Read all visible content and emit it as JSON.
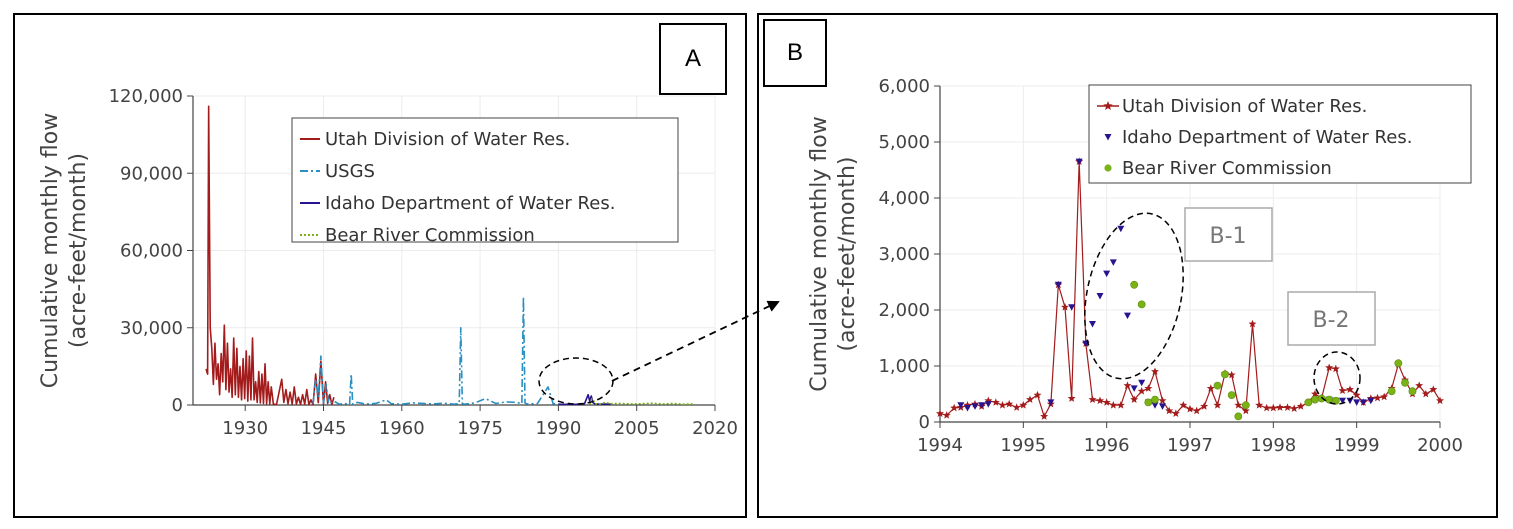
{
  "colors": {
    "utah": "#a31b1b",
    "usgs": "#2a8fc1",
    "idaho": "#29148f",
    "brc": "#7bb317",
    "grid": "#ececec",
    "axis": "#444444"
  },
  "panel_a": {
    "tag": "A"
  },
  "panel_b": {
    "tag": "B"
  },
  "callouts": {
    "b1": "B-1",
    "b2": "B-2"
  },
  "chart_data": [
    {
      "type": "line",
      "ylabel": "Cumulative monthly flow (acre-feet/month)",
      "ylabel_lines": [
        "Cumulative monthly flow",
        "(acre-feet/month)"
      ],
      "xlim": [
        1920,
        2020
      ],
      "ylim": [
        0,
        120000
      ],
      "x_ticks": [
        "1930",
        "1945",
        "1960",
        "1975",
        "1990",
        "2005",
        "2020"
      ],
      "y_ticks": [
        "0",
        "30,000",
        "60,000",
        "90,000",
        "120,000"
      ],
      "grid": true,
      "legend_position": "top-right",
      "series": [
        {
          "name": "Utah Division of Water Res.",
          "style": "solid",
          "color_key": "utah",
          "x": [
            1922.5,
            1922.8,
            1923.0,
            1923.3,
            1923.6,
            1923.9,
            1924.2,
            1924.5,
            1924.8,
            1925.1,
            1925.4,
            1925.7,
            1926.0,
            1926.3,
            1926.6,
            1926.9,
            1927.2,
            1927.5,
            1927.8,
            1928.1,
            1928.4,
            1928.7,
            1929.0,
            1929.3,
            1929.6,
            1929.9,
            1930.2,
            1930.5,
            1930.8,
            1931.1,
            1931.4,
            1931.7,
            1932.0,
            1932.3,
            1932.6,
            1932.9,
            1933.2,
            1933.5,
            1933.8,
            1934.1,
            1934.4,
            1934.7,
            1935.0,
            1935.4,
            1936.0,
            1937.0,
            1937.4,
            1937.8,
            1938.2,
            1938.6,
            1939.0,
            1939.4,
            1939.8,
            1940.2,
            1940.6,
            1941.0,
            1941.4,
            1941.8,
            1942.2,
            1942.6,
            1943.0,
            1943.5,
            1944.0,
            1944.5,
            1945.0,
            1945.4,
            1945.8,
            1946.2,
            1946.6,
            1947.0
          ],
          "values": [
            14000,
            12000,
            116000,
            30000,
            22000,
            8000,
            24000,
            10000,
            16000,
            4000,
            20000,
            9000,
            31000,
            6000,
            24000,
            5000,
            14000,
            3000,
            26000,
            4000,
            22000,
            3000,
            15000,
            2000,
            18000,
            2500,
            21000,
            1500,
            19000,
            2000,
            26000,
            2000,
            9000,
            1000,
            13000,
            800,
            12000,
            600,
            16000,
            500,
            9000,
            400,
            7000,
            300,
            200,
            10000,
            1000,
            6000,
            500,
            5000,
            300,
            7000,
            400,
            3000,
            200,
            4000,
            300,
            6000,
            200,
            2000,
            100,
            12000,
            900,
            17000,
            300,
            9000,
            600,
            4000,
            200,
            3000
          ]
        },
        {
          "name": "USGS",
          "style": "dash-dot",
          "color_key": "usgs",
          "x": [
            1943.0,
            1943.5,
            1944.0,
            1944.5,
            1945.0,
            1945.5,
            1946.0,
            1947.0,
            1948.0,
            1949.0,
            1950.0,
            1950.3,
            1950.6,
            1951.5,
            1953.0,
            1955.0,
            1957.0,
            1958.0,
            1960.0,
            1962.0,
            1964.0,
            1966.0,
            1968.0,
            1970.0,
            1971.0,
            1971.3,
            1971.6,
            1972.0,
            1974.0,
            1976.0,
            1978.0,
            1980.0,
            1982.0,
            1983.0,
            1983.3,
            1983.6,
            1984.0,
            1986.0,
            1988.0,
            1989.0,
            1990.0
          ],
          "values": [
            500,
            10000,
            3000,
            19000,
            800,
            8000,
            500,
            1500,
            300,
            600,
            200,
            12000,
            300,
            1000,
            400,
            600,
            2000,
            500,
            300,
            800,
            600,
            400,
            700,
            300,
            500,
            30000,
            500,
            300,
            800,
            2500,
            600,
            1200,
            1000,
            500,
            42000,
            800,
            400,
            600,
            7000,
            500,
            300
          ]
        },
        {
          "name": "Idaho Department of Water Res.",
          "style": "solid",
          "color_key": "idaho",
          "x": [
            1990.0,
            1991.0,
            1992.0,
            1993.0,
            1994.0,
            1995.0,
            1995.7,
            1996.0,
            1996.3,
            1996.6,
            1997.0,
            1998.0,
            1999.0,
            2000.0
          ],
          "values": [
            300,
            200,
            300,
            200,
            300,
            500,
            4000,
            1500,
            3500,
            1000,
            400,
            300,
            350,
            300
          ]
        },
        {
          "name": "Bear River Commission",
          "style": "dotted",
          "color_key": "brc",
          "x": [
            1996.0,
            1996.4,
            1996.7,
            1997.0,
            1998.0,
            1999.0,
            2000.0,
            2002.0,
            2004.0,
            2006.0,
            2008.0,
            2010.0,
            2012.0,
            2014.0,
            2016.0
          ],
          "values": [
            300,
            2400,
            2000,
            500,
            400,
            1000,
            500,
            600,
            400,
            500,
            700,
            400,
            600,
            300,
            400
          ]
        }
      ],
      "annotations": [
        {
          "type": "dashed-ellipse",
          "around": "1991-1999"
        },
        {
          "type": "dashed-arrow",
          "to": "panel B"
        }
      ]
    },
    {
      "type": "scatter",
      "ylabel": "Cumulative monthly flow (acre-feet/month)",
      "ylabel_lines": [
        "Cumulative monthly flow",
        "(acre-feet/month)"
      ],
      "xlim": [
        1994,
        2000
      ],
      "ylim": [
        0,
        6000
      ],
      "x_ticks": [
        "1994",
        "1995",
        "1996",
        "1997",
        "1998",
        "1999",
        "2000"
      ],
      "y_ticks": [
        "0",
        "1,000",
        "2,000",
        "3,000",
        "4,000",
        "5,000",
        "6,000"
      ],
      "grid": true,
      "legend_position": "top-right",
      "series": [
        {
          "name": "Utah Division of Water Res.",
          "marker": "star",
          "connected": true,
          "color_key": "utah",
          "x": [
            1994.0,
            1994.08,
            1994.17,
            1994.25,
            1994.33,
            1994.42,
            1994.5,
            1994.58,
            1994.67,
            1994.75,
            1994.83,
            1994.92,
            1995.0,
            1995.08,
            1995.17,
            1995.25,
            1995.33,
            1995.42,
            1995.5,
            1995.58,
            1995.67,
            1995.75,
            1995.83,
            1995.92,
            1996.0,
            1996.08,
            1996.17,
            1996.25,
            1996.33,
            1996.42,
            1996.5,
            1996.58,
            1996.67,
            1996.75,
            1996.83,
            1996.92,
            1997.0,
            1997.08,
            1997.17,
            1997.25,
            1997.33,
            1997.42,
            1997.5,
            1997.58,
            1997.67,
            1997.75,
            1997.83,
            1997.92,
            1998.0,
            1998.08,
            1998.17,
            1998.25,
            1998.33,
            1998.42,
            1998.5,
            1998.58,
            1998.67,
            1998.75,
            1998.83,
            1998.92,
            1999.0,
            1999.08,
            1999.17,
            1999.25,
            1999.33,
            1999.42,
            1999.5,
            1999.58,
            1999.67,
            1999.75,
            1999.83,
            1999.92,
            2000.0
          ],
          "values": [
            150,
            120,
            250,
            260,
            300,
            320,
            280,
            380,
            350,
            300,
            320,
            260,
            300,
            400,
            480,
            100,
            320,
            2450,
            2050,
            420,
            4650,
            1400,
            400,
            380,
            350,
            300,
            300,
            650,
            400,
            550,
            600,
            900,
            380,
            200,
            150,
            300,
            230,
            200,
            280,
            600,
            300,
            870,
            840,
            300,
            200,
            1750,
            300,
            250,
            250,
            260,
            260,
            240,
            280,
            350,
            500,
            430,
            970,
            950,
            560,
            580,
            480,
            350,
            420,
            430,
            450,
            600,
            1030,
            750,
            500,
            650,
            500,
            580,
            380
          ]
        },
        {
          "name": "Idaho Department of Water Res.",
          "marker": "triangle-down",
          "connected": false,
          "color_key": "idaho",
          "x": [
            1994.25,
            1994.33,
            1994.42,
            1994.5,
            1994.58,
            1995.33,
            1995.42,
            1995.58,
            1995.67,
            1995.75,
            1995.83,
            1995.92,
            1996.0,
            1996.08,
            1996.17,
            1996.25,
            1996.33,
            1996.42,
            1996.5,
            1996.58,
            1996.67,
            1998.67,
            1998.75,
            1998.83,
            1998.92,
            1999.0,
            1999.08,
            1999.17
          ],
          "values": [
            300,
            250,
            280,
            300,
            320,
            350,
            2450,
            2050,
            4650,
            1400,
            1750,
            2250,
            2650,
            2850,
            3450,
            1900,
            600,
            700,
            350,
            300,
            280,
            400,
            380,
            380,
            380,
            350,
            350,
            380
          ]
        },
        {
          "name": "Bear River Commission",
          "marker": "circle",
          "connected": false,
          "color_key": "brc",
          "x": [
            1996.33,
            1996.42,
            1996.5,
            1996.58,
            1997.33,
            1997.42,
            1997.5,
            1997.58,
            1997.67,
            1998.42,
            1998.5,
            1998.58,
            1998.67,
            1998.75,
            1999.42,
            1999.5,
            1999.58,
            1999.67
          ],
          "values": [
            2450,
            2100,
            350,
            400,
            650,
            850,
            480,
            100,
            300,
            350,
            400,
            420,
            400,
            380,
            550,
            1050,
            700,
            550
          ]
        }
      ],
      "annotations": [
        {
          "type": "dashed-ellipse",
          "label": "B-1",
          "around": "1996"
        },
        {
          "type": "dashed-ellipse",
          "label": "B-2",
          "around": "1998.5-1999"
        }
      ]
    }
  ]
}
